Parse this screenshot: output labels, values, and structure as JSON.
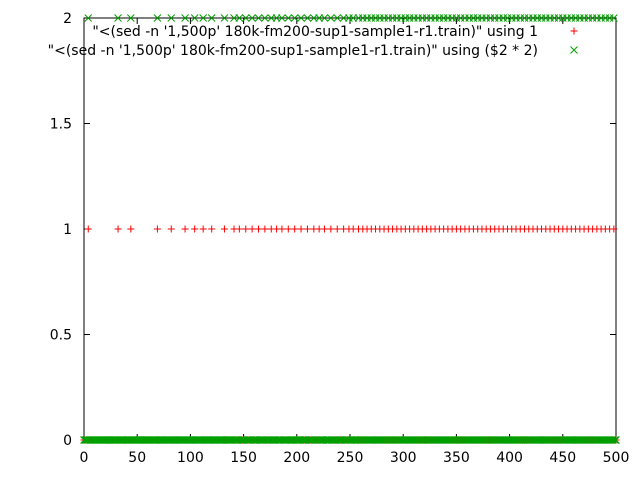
{
  "chart_data": {
    "type": "scatter",
    "title": "",
    "xlabel": "",
    "ylabel": "",
    "xlim": [
      0,
      500
    ],
    "ylim": [
      0,
      2
    ],
    "xticks": [
      0,
      50,
      100,
      150,
      200,
      250,
      300,
      350,
      400,
      450,
      500
    ],
    "yticks": [
      0,
      0.5,
      1,
      1.5,
      2
    ],
    "x_tick_labels": [
      "0",
      "50",
      "100",
      "150",
      "200",
      "250",
      "300",
      "350",
      "400",
      "450",
      "500"
    ],
    "y_tick_labels": [
      "0",
      "0.5",
      "1",
      "1.5",
      "2"
    ],
    "grid": false,
    "legend_position": "top-right",
    "series": [
      {
        "name": "\"<(sed -n '1,500p' 180k-fm200-sup1-sample1-r1.train)\" using 1",
        "marker": "+",
        "color": "#ff0000",
        "upper_value": 1,
        "upper_x": [
          4,
          32,
          44,
          69,
          82,
          95,
          104,
          112,
          120,
          132,
          141,
          146,
          152,
          158,
          164,
          170,
          176,
          181,
          186,
          192,
          198,
          204,
          210,
          216,
          221,
          226,
          232,
          238,
          244,
          249,
          253,
          258,
          262,
          266,
          270,
          274,
          278,
          282,
          286,
          290,
          294,
          298,
          302,
          306,
          310,
          314,
          318,
          322,
          326,
          330,
          334,
          338,
          342,
          346,
          350,
          354,
          358,
          362,
          366,
          370,
          374,
          378,
          382,
          386,
          390,
          394,
          398,
          402,
          406,
          410,
          414,
          418,
          422,
          426,
          430,
          434,
          438,
          442,
          446,
          450,
          454,
          458,
          462,
          466,
          470,
          474,
          478,
          482,
          486,
          490,
          494,
          498
        ],
        "lower_value": 0,
        "lower_x_range": [
          0,
          500
        ]
      },
      {
        "name": "\"<(sed -n '1,500p' 180k-fm200-sup1-sample1-r1.train)\" using ($2 * 2)",
        "marker": "x",
        "color": "#00a000",
        "upper_value": 2,
        "upper_x": [
          4,
          32,
          44,
          69,
          82,
          95,
          104,
          112,
          120,
          132,
          141,
          146,
          152,
          158,
          164,
          170,
          176,
          181,
          186,
          192,
          198,
          204,
          210,
          216,
          221,
          226,
          232,
          238,
          244,
          249,
          253,
          258,
          262,
          266,
          270,
          274,
          278,
          282,
          286,
          290,
          294,
          298,
          302,
          306,
          310,
          314,
          318,
          322,
          326,
          330,
          334,
          338,
          342,
          346,
          350,
          354,
          358,
          362,
          366,
          370,
          374,
          378,
          382,
          386,
          390,
          394,
          398,
          402,
          406,
          410,
          414,
          418,
          422,
          426,
          430,
          434,
          438,
          442,
          446,
          450,
          454,
          458,
          462,
          466,
          470,
          474,
          478,
          482,
          486,
          490,
          494,
          498
        ],
        "lower_value": 0,
        "lower_x_range": [
          0,
          500
        ]
      }
    ]
  }
}
